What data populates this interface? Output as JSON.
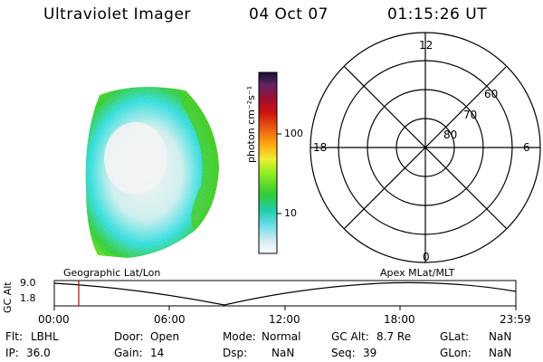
{
  "header": {
    "instrument": "Ultraviolet Imager",
    "date": "04 Oct 07",
    "time": "01:15:26 UT"
  },
  "colorbar": {
    "unit_label": "photon cm⁻²s⁻¹",
    "ticks": [
      "100",
      "10"
    ]
  },
  "polar_plot": {
    "mlt_labels": {
      "top": "12",
      "left": "18",
      "right": "6",
      "bottom": "0"
    },
    "lat_labels": [
      "60",
      "70",
      "80"
    ]
  },
  "alt_strip": {
    "ylabel": "GC Alt",
    "y_ticks": [
      "9.0",
      "1.8"
    ],
    "left_title": "Geographic Lat/Lon",
    "right_title": "Apex  MLat/MLT",
    "x_ticks": [
      "00:00",
      "06:00",
      "12:00",
      "18:00",
      "23:59"
    ]
  },
  "info": {
    "row1": [
      {
        "key": "Flt:",
        "value": "LBHL"
      },
      {
        "key": "Door:",
        "value": "Open"
      },
      {
        "key": "Mode:",
        "value": "Normal"
      },
      {
        "key": "GC Alt:",
        "value": "8.7 Re"
      },
      {
        "key": "GLat:",
        "value": "NaN"
      }
    ],
    "row2": [
      {
        "key": "IP:",
        "value": "36.0"
      },
      {
        "key": "Gain:",
        "value": "14"
      },
      {
        "key": "Dsp:",
        "value": "NaN"
      },
      {
        "key": "Seq:",
        "value": "39"
      },
      {
        "key": "GLon:",
        "value": "NaN"
      }
    ]
  },
  "colors": {
    "cursor": "#cc0000",
    "aurora_green": "#22cc22",
    "aurora_cyan": "#22dddd"
  }
}
